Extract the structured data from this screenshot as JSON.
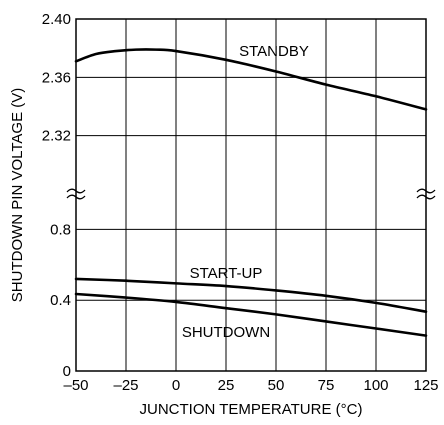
{
  "chart_data": {
    "type": "line",
    "xlabel": "JUNCTION TEMPERATURE (°C)",
    "ylabel": "SHUTDOWN PIN VOLTAGE (V)",
    "xlim": [
      -50,
      125
    ],
    "x_ticks": [
      "–50",
      "–25",
      "0",
      "25",
      "50",
      "75",
      "100",
      "125"
    ],
    "y_axis_break": true,
    "y_upper_segment": {
      "ylim": [
        2.28,
        2.4
      ],
      "tick_labels": [
        "2.32",
        "2.36",
        "2.40"
      ]
    },
    "y_lower_segment": {
      "ylim": [
        0,
        1.0
      ],
      "tick_labels": [
        "0",
        "0.4",
        "0.8"
      ]
    },
    "grid": true,
    "series": [
      {
        "name": "STANDBY",
        "x": [
          -50,
          -40,
          -30,
          -20,
          -10,
          0,
          25,
          50,
          75,
          100,
          125
        ],
        "y": [
          2.371,
          2.376,
          2.378,
          2.379,
          2.379,
          2.378,
          2.372,
          2.364,
          2.355,
          2.347,
          2.338
        ]
      },
      {
        "name": "START-UP",
        "x": [
          -50,
          -25,
          0,
          25,
          50,
          75,
          100,
          125
        ],
        "y": [
          0.52,
          0.51,
          0.495,
          0.48,
          0.455,
          0.425,
          0.385,
          0.335
        ]
      },
      {
        "name": "SHUTDOWN",
        "x": [
          -50,
          -25,
          0,
          25,
          50,
          75,
          100,
          125
        ],
        "y": [
          0.435,
          0.415,
          0.39,
          0.355,
          0.32,
          0.28,
          0.24,
          0.2
        ]
      }
    ]
  }
}
